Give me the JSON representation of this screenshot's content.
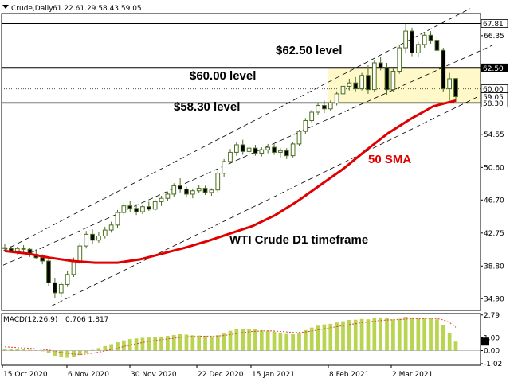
{
  "header": {
    "symbol": "Crude,Daily",
    "ohlc": "61.22 61.29 58.43 59.05"
  },
  "macd_header": {
    "label": "MACD(12,26,9)",
    "values": "0.706 1.817"
  },
  "colors": {
    "bull_fill": "#ffffff",
    "bear_fill": "#000000",
    "candle_stroke": "#4b6d20",
    "sma": "#e00000",
    "zone": "#fff8c8",
    "macd_bar": "#b8d450",
    "signal": "#e04040"
  },
  "chart_data": [
    {
      "type": "candlestick",
      "title": "WTI Crude D1 timeframe",
      "ylim": [
        33.5,
        69.0
      ],
      "y_ticks": [
        "66.35",
        "62.50",
        "58.30",
        "54.55",
        "50.60",
        "46.70",
        "42.75",
        "38.80",
        "34.90"
      ],
      "x_ticks": [
        "15 Oct 2020",
        "6 Nov 2020",
        "30 Nov 2020",
        "22 Dec 2020",
        "15 Jan 2021",
        "8 Feb 2021",
        "2 Mar 2021"
      ],
      "levels": [
        {
          "label": "$62.50 level",
          "value": 62.5,
          "style": "solid"
        },
        {
          "label": "$60.00 level",
          "value": 60.0,
          "style": "dotted"
        },
        {
          "label": "$58.30 level",
          "value": 58.3,
          "style": "solid"
        }
      ],
      "price_labels": [
        {
          "text": "67.81",
          "value": 67.81,
          "style": "box"
        },
        {
          "text": "62.50",
          "value": 62.5,
          "style": "black"
        },
        {
          "text": "60.00",
          "value": 60.0,
          "style": "box"
        },
        {
          "text": "59.05",
          "value": 59.05,
          "style": "box"
        },
        {
          "text": "58.30",
          "value": 58.3,
          "style": "box"
        }
      ],
      "sma": {
        "label": "50 SMA",
        "values": [
          40.6,
          40.3,
          39.8,
          39.4,
          39.2,
          39.2,
          39.6,
          40.3,
          41.0,
          41.8,
          42.7,
          43.6,
          44.9,
          46.6,
          48.5,
          50.4,
          52.6,
          54.7,
          56.4,
          57.9,
          58.6
        ]
      },
      "candles": [
        [
          41.0,
          41.4,
          40.7,
          40.9
        ],
        [
          40.9,
          41.2,
          40.5,
          40.6
        ],
        [
          40.6,
          41.1,
          40.2,
          40.9
        ],
        [
          40.9,
          41.3,
          40.4,
          40.8
        ],
        [
          40.8,
          41.0,
          39.9,
          40.2
        ],
        [
          40.2,
          40.8,
          39.6,
          39.8
        ],
        [
          39.8,
          40.2,
          39.0,
          39.4
        ],
        [
          39.4,
          39.6,
          36.4,
          36.8
        ],
        [
          36.8,
          37.4,
          35.0,
          35.6
        ],
        [
          35.6,
          36.9,
          35.1,
          36.6
        ],
        [
          36.6,
          38.2,
          36.3,
          37.8
        ],
        [
          37.8,
          39.8,
          37.5,
          39.4
        ],
        [
          39.4,
          41.6,
          39.0,
          41.2
        ],
        [
          41.2,
          43.0,
          40.9,
          42.6
        ],
        [
          42.6,
          43.2,
          41.4,
          41.9
        ],
        [
          41.9,
          42.9,
          41.6,
          42.4
        ],
        [
          42.4,
          43.5,
          42.1,
          43.1
        ],
        [
          43.1,
          44.1,
          42.8,
          43.7
        ],
        [
          43.7,
          45.5,
          43.4,
          45.2
        ],
        [
          45.2,
          46.4,
          44.9,
          46.0
        ],
        [
          46.0,
          46.6,
          45.3,
          45.7
        ],
        [
          45.7,
          46.2,
          44.9,
          45.3
        ],
        [
          45.3,
          46.1,
          45.0,
          45.9
        ],
        [
          45.9,
          46.5,
          45.4,
          45.6
        ],
        [
          45.6,
          46.8,
          45.4,
          46.5
        ],
        [
          46.5,
          47.2,
          46.0,
          46.9
        ],
        [
          46.9,
          47.7,
          46.6,
          47.4
        ],
        [
          47.4,
          48.7,
          47.1,
          48.4
        ],
        [
          48.4,
          49.3,
          47.6,
          48.0
        ],
        [
          48.0,
          48.3,
          47.0,
          47.4
        ],
        [
          47.4,
          48.0,
          46.9,
          47.8
        ],
        [
          47.8,
          48.5,
          47.5,
          48.1
        ],
        [
          48.1,
          48.4,
          47.3,
          47.6
        ],
        [
          47.6,
          48.1,
          47.2,
          47.9
        ],
        [
          47.9,
          50.2,
          47.6,
          49.9
        ],
        [
          49.9,
          51.6,
          49.5,
          51.3
        ],
        [
          51.3,
          52.8,
          51.0,
          52.4
        ],
        [
          52.4,
          53.6,
          52.0,
          53.3
        ],
        [
          53.3,
          53.9,
          52.1,
          52.5
        ],
        [
          52.5,
          53.2,
          52.2,
          52.9
        ],
        [
          52.9,
          53.3,
          52.0,
          52.3
        ],
        [
          52.3,
          53.0,
          51.9,
          52.7
        ],
        [
          52.7,
          53.4,
          52.3,
          53.0
        ],
        [
          53.0,
          53.5,
          52.1,
          52.4
        ],
        [
          52.4,
          52.9,
          51.8,
          52.6
        ],
        [
          52.6,
          52.9,
          51.6,
          52.0
        ],
        [
          52.0,
          53.6,
          51.8,
          53.4
        ],
        [
          53.4,
          55.1,
          53.2,
          54.9
        ],
        [
          54.9,
          56.5,
          54.6,
          56.2
        ],
        [
          56.2,
          57.5,
          55.9,
          57.2
        ],
        [
          57.2,
          58.4,
          56.9,
          58.0
        ],
        [
          58.0,
          58.6,
          57.1,
          57.6
        ],
        [
          57.6,
          58.6,
          57.3,
          58.3
        ],
        [
          58.3,
          59.7,
          58.0,
          59.4
        ],
        [
          59.4,
          60.6,
          59.1,
          60.3
        ],
        [
          60.3,
          61.2,
          59.8,
          60.7
        ],
        [
          60.7,
          61.4,
          59.7,
          60.0
        ],
        [
          60.0,
          61.9,
          59.8,
          61.6
        ],
        [
          61.6,
          62.8,
          59.4,
          59.9
        ],
        [
          59.9,
          63.4,
          59.6,
          63.1
        ],
        [
          63.1,
          63.8,
          62.2,
          62.5
        ],
        [
          62.5,
          63.1,
          59.3,
          59.9
        ],
        [
          59.9,
          62.4,
          59.6,
          62.1
        ],
        [
          62.1,
          65.2,
          61.8,
          64.9
        ],
        [
          64.9,
          67.81,
          64.3,
          66.9
        ],
        [
          66.9,
          67.3,
          63.9,
          64.3
        ],
        [
          64.3,
          65.6,
          63.8,
          65.3
        ],
        [
          65.3,
          66.8,
          64.9,
          66.4
        ],
        [
          66.4,
          66.9,
          65.4,
          65.8
        ],
        [
          65.8,
          66.3,
          64.2,
          64.6
        ],
        [
          64.6,
          64.9,
          59.6,
          60.0
        ],
        [
          60.0,
          61.9,
          58.6,
          61.2
        ],
        [
          61.22,
          61.29,
          58.43,
          59.05
        ]
      ]
    },
    {
      "type": "bar",
      "title": "MACD(12,26,9)",
      "ylim": [
        -1.15,
        2.9
      ],
      "y_ticks": [
        "2.79",
        "1.00",
        "0.00",
        "-1.02"
      ],
      "macd": [
        0.15,
        0.14,
        0.12,
        0.1,
        0.06,
        0.02,
        -0.05,
        -0.2,
        -0.4,
        -0.52,
        -0.56,
        -0.5,
        -0.35,
        -0.15,
        0.05,
        0.2,
        0.35,
        0.5,
        0.65,
        0.8,
        0.9,
        0.95,
        1.0,
        1.02,
        1.05,
        1.1,
        1.15,
        1.22,
        1.28,
        1.25,
        1.2,
        1.18,
        1.15,
        1.12,
        1.2,
        1.35,
        1.55,
        1.7,
        1.72,
        1.7,
        1.65,
        1.6,
        1.55,
        1.48,
        1.4,
        1.3,
        1.28,
        1.4,
        1.6,
        1.8,
        1.95,
        2.05,
        2.1,
        2.2,
        2.3,
        2.4,
        2.42,
        2.48,
        2.45,
        2.55,
        2.6,
        2.55,
        2.45,
        2.5,
        2.65,
        2.6,
        2.5,
        2.55,
        2.55,
        2.45,
        2.0,
        1.4,
        0.706
      ],
      "signal": [
        0.3,
        0.27,
        0.24,
        0.21,
        0.18,
        0.14,
        0.1,
        0.04,
        -0.05,
        -0.14,
        -0.22,
        -0.28,
        -0.3,
        -0.27,
        -0.2,
        -0.12,
        -0.02,
        0.09,
        0.2,
        0.32,
        0.44,
        0.54,
        0.63,
        0.71,
        0.78,
        0.85,
        0.91,
        0.97,
        1.03,
        1.07,
        1.1,
        1.12,
        1.13,
        1.13,
        1.14,
        1.18,
        1.25,
        1.34,
        1.41,
        1.47,
        1.51,
        1.53,
        1.54,
        1.53,
        1.5,
        1.46,
        1.42,
        1.42,
        1.46,
        1.53,
        1.62,
        1.71,
        1.79,
        1.87,
        1.95,
        2.04,
        2.11,
        2.19,
        2.24,
        2.3,
        2.36,
        2.4,
        2.41,
        2.43,
        2.47,
        2.5,
        2.5,
        2.51,
        2.52,
        2.51,
        2.41,
        2.21,
        1.817
      ]
    }
  ]
}
